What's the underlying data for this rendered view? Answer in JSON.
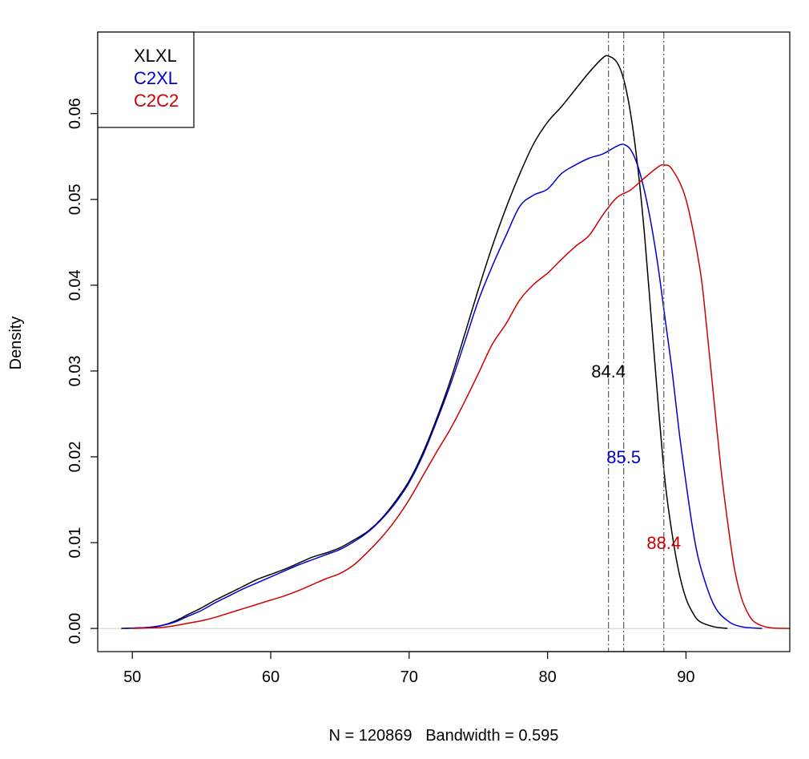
{
  "chart_data": {
    "type": "line",
    "title": "",
    "xlabel": "N = 120869   Bandwidth = 0.595",
    "ylabel": "Density",
    "xlim": [
      47.5,
      97.5
    ],
    "ylim": [
      -0.0027,
      0.0695
    ],
    "x_ticks": [
      50,
      60,
      70,
      80,
      90
    ],
    "y_ticks": [
      0.0,
      0.01,
      0.02,
      0.03,
      0.04,
      0.05,
      0.06
    ],
    "y_tick_labels": [
      "0.00",
      "0.01",
      "0.02",
      "0.03",
      "0.04",
      "0.05",
      "0.06"
    ],
    "grid": false,
    "baseline": 0,
    "legend": {
      "position": "top-left",
      "entries": [
        {
          "label": "XLXL",
          "color": "#000000"
        },
        {
          "label": "C2XL",
          "color": "#0000cc"
        },
        {
          "label": "C2C2",
          "color": "#cc0000"
        }
      ]
    },
    "series": [
      {
        "name": "XLXL",
        "color": "#000000",
        "x": [
          49.2,
          51,
          52,
          53,
          54,
          55,
          56,
          57,
          58,
          59,
          60,
          61,
          62,
          63,
          64,
          65,
          66,
          67,
          68,
          69,
          70,
          71,
          72,
          73,
          74,
          75,
          76,
          77,
          78,
          79,
          80,
          81,
          82,
          83,
          84,
          84.4,
          85,
          85.5,
          86,
          86.5,
          87,
          87.5,
          88,
          88.5,
          89,
          89.5,
          90,
          90.5,
          91,
          92,
          93
        ],
        "y": [
          0.0,
          0.0001,
          0.0003,
          0.0008,
          0.0016,
          0.0024,
          0.0033,
          0.0041,
          0.0049,
          0.0057,
          0.0063,
          0.0069,
          0.0076,
          0.0083,
          0.0088,
          0.0094,
          0.0103,
          0.0113,
          0.0128,
          0.0148,
          0.0172,
          0.0205,
          0.0245,
          0.029,
          0.0342,
          0.0395,
          0.0445,
          0.049,
          0.053,
          0.0565,
          0.059,
          0.0608,
          0.0628,
          0.0648,
          0.0665,
          0.0667,
          0.066,
          0.064,
          0.06,
          0.054,
          0.046,
          0.036,
          0.026,
          0.017,
          0.011,
          0.0065,
          0.0035,
          0.0018,
          0.0008,
          0.0002,
          0.0
        ]
      },
      {
        "name": "C2XL",
        "color": "#0000cc",
        "x": [
          49.5,
          51,
          52,
          53,
          54,
          55,
          56,
          57,
          58,
          59,
          60,
          61,
          62,
          63,
          64,
          65,
          66,
          67,
          68,
          69,
          70,
          71,
          72,
          73,
          74,
          75,
          76,
          77,
          78,
          79,
          80,
          81,
          82,
          83,
          84,
          85,
          85.5,
          86,
          86.5,
          87,
          87.5,
          88,
          88.5,
          89,
          89.5,
          90,
          90.5,
          91,
          92,
          93,
          94,
          95.5
        ],
        "y": [
          0.0,
          0.0001,
          0.0003,
          0.0007,
          0.0014,
          0.0021,
          0.003,
          0.0038,
          0.0046,
          0.0053,
          0.006,
          0.0067,
          0.0074,
          0.008,
          0.0086,
          0.0092,
          0.0101,
          0.0112,
          0.0127,
          0.0146,
          0.017,
          0.0202,
          0.0242,
          0.0285,
          0.0333,
          0.0382,
          0.0422,
          0.0458,
          0.0492,
          0.0505,
          0.0512,
          0.053,
          0.054,
          0.0548,
          0.0553,
          0.0562,
          0.0564,
          0.0558,
          0.054,
          0.051,
          0.047,
          0.042,
          0.036,
          0.03,
          0.023,
          0.017,
          0.0115,
          0.0075,
          0.0028,
          0.0009,
          0.0002,
          0.0
        ]
      },
      {
        "name": "C2C2",
        "color": "#cc0000",
        "x": [
          50,
          52,
          53,
          54,
          55,
          56,
          57,
          58,
          59,
          60,
          61,
          62,
          63,
          64,
          65,
          66,
          67,
          68,
          69,
          70,
          71,
          72,
          73,
          74,
          75,
          76,
          77,
          78,
          79,
          80,
          81,
          82,
          83,
          84,
          85,
          86,
          87,
          88,
          88.4,
          89,
          90,
          91,
          91.5,
          92,
          92.5,
          93,
          93.5,
          94,
          94.5,
          95,
          96,
          97.5
        ],
        "y": [
          0.0,
          0.0001,
          0.0003,
          0.0006,
          0.0009,
          0.0013,
          0.0018,
          0.0023,
          0.0028,
          0.0033,
          0.0038,
          0.0044,
          0.0051,
          0.0058,
          0.0064,
          0.0074,
          0.0089,
          0.0106,
          0.0126,
          0.015,
          0.0178,
          0.0206,
          0.0233,
          0.0264,
          0.0297,
          0.0331,
          0.0355,
          0.0383,
          0.0401,
          0.0414,
          0.043,
          0.0445,
          0.0458,
          0.0482,
          0.0502,
          0.0511,
          0.0525,
          0.0538,
          0.054,
          0.0535,
          0.05,
          0.042,
          0.035,
          0.027,
          0.019,
          0.0125,
          0.007,
          0.0036,
          0.0017,
          0.0007,
          0.0001,
          0.0
        ]
      }
    ],
    "vlines": [
      {
        "x": 84.4,
        "color": "#666666",
        "style": "dashdot"
      },
      {
        "x": 85.5,
        "color": "#666666",
        "style": "dashdot"
      },
      {
        "x": 88.4,
        "color": "#666666",
        "style": "dashdot"
      }
    ],
    "annotations": [
      {
        "text": "84.4",
        "x": 84.4,
        "y": 0.03,
        "color": "#000000"
      },
      {
        "text": "85.5",
        "x": 85.5,
        "y": 0.02,
        "color": "#0000cc"
      },
      {
        "text": "88.4",
        "x": 88.4,
        "y": 0.01,
        "color": "#cc0000"
      }
    ]
  }
}
